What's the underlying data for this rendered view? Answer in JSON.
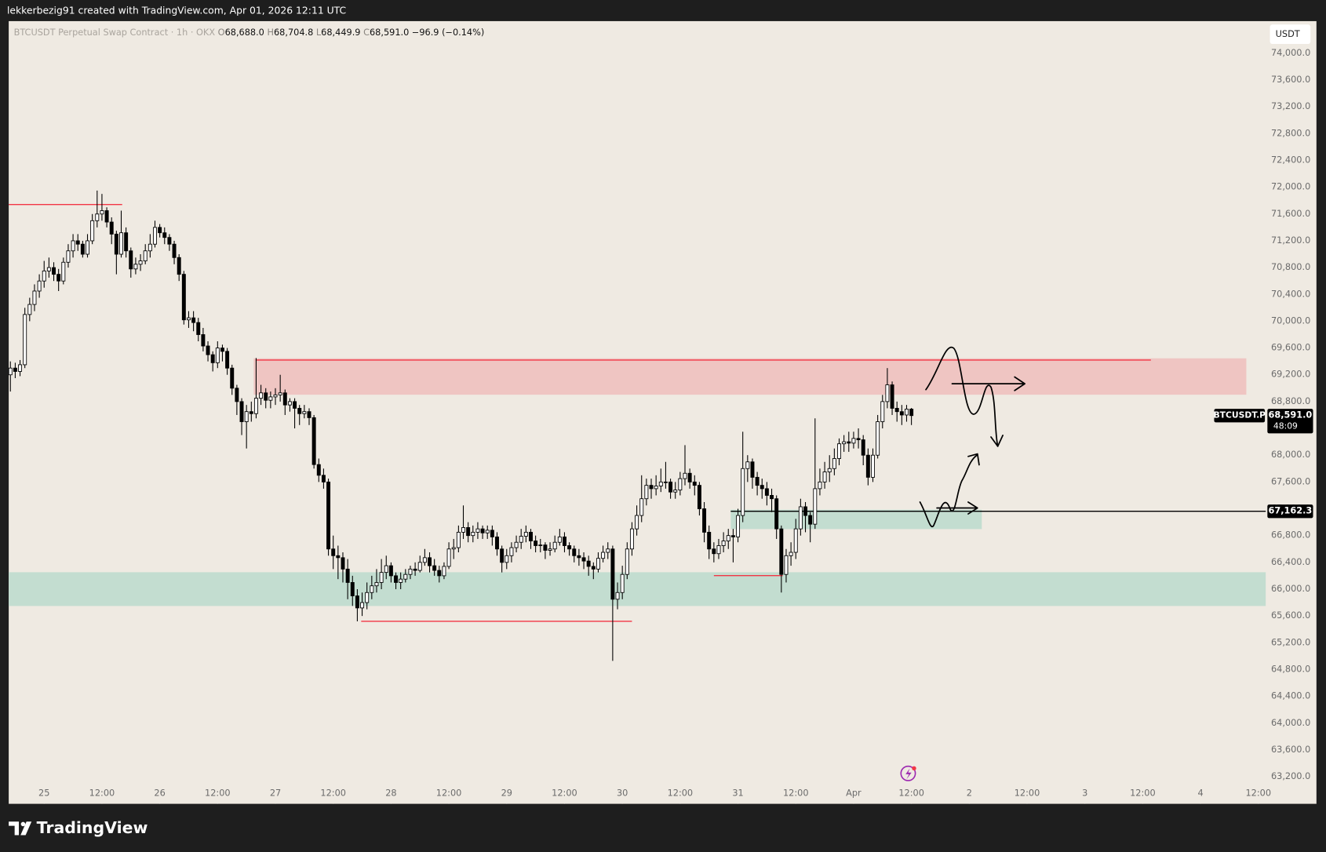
{
  "topbar": "lekkerbezig91 created with TradingView.com, Apr 01, 2026 12:11 UTC",
  "brand": "TradingView",
  "chart_data": {
    "type": "candlestick",
    "header": {
      "symbol": "BTCUSDT Perpetual Swap Contract · 1h · OKX",
      "items": [
        {
          "key": "O",
          "value": "68,688.0"
        },
        {
          "key": "H",
          "value": "68,704.8"
        },
        {
          "key": "L",
          "value": "68,449.9"
        },
        {
          "key": "C",
          "value": "68,591.0"
        }
      ],
      "change": "−96.9 (−0.14%)"
    },
    "currency": "USDT",
    "up_color": "#ffffff",
    "down_color": "#000000",
    "wick_color": "#000000",
    "ohlc": [
      [
        69200,
        69400,
        68950,
        69300
      ],
      [
        69300,
        69380,
        69150,
        69250
      ],
      [
        69250,
        69420,
        69180,
        69350
      ],
      [
        69350,
        70200,
        69300,
        70100
      ],
      [
        70100,
        70350,
        70000,
        70250
      ],
      [
        70250,
        70550,
        70150,
        70450
      ],
      [
        70450,
        70700,
        70350,
        70600
      ],
      [
        70600,
        70900,
        70500,
        70750
      ],
      [
        70750,
        70950,
        70650,
        70800
      ],
      [
        70800,
        70880,
        70600,
        70700
      ],
      [
        70700,
        70780,
        70450,
        70600
      ],
      [
        70600,
        70950,
        70550,
        70880
      ],
      [
        70880,
        71150,
        70800,
        71050
      ],
      [
        71050,
        71300,
        70950,
        71200
      ],
      [
        71200,
        71300,
        71050,
        71150
      ],
      [
        71150,
        71200,
        70950,
        71000
      ],
      [
        71000,
        71300,
        70950,
        71200
      ],
      [
        71200,
        71600,
        71150,
        71500
      ],
      [
        71500,
        71950,
        71400,
        71600
      ],
      [
        71600,
        71900,
        71500,
        71650
      ],
      [
        71650,
        71700,
        71400,
        71480
      ],
      [
        71480,
        71550,
        71150,
        71300
      ],
      [
        71300,
        71350,
        70700,
        71000
      ],
      [
        71000,
        71650,
        70950,
        71320
      ],
      [
        71320,
        71400,
        70950,
        71050
      ],
      [
        71050,
        71100,
        70650,
        70780
      ],
      [
        70780,
        70950,
        70700,
        70850
      ],
      [
        70850,
        71000,
        70750,
        70900
      ],
      [
        70900,
        71150,
        70850,
        71050
      ],
      [
        71050,
        71300,
        70950,
        71150
      ],
      [
        71150,
        71500,
        71100,
        71400
      ],
      [
        71400,
        71450,
        71250,
        71320
      ],
      [
        71320,
        71400,
        71150,
        71250
      ],
      [
        71250,
        71300,
        71050,
        71150
      ],
      [
        71150,
        71200,
        70850,
        70950
      ],
      [
        70950,
        71000,
        70600,
        70700
      ],
      [
        70700,
        70750,
        69950,
        70020
      ],
      [
        70020,
        70150,
        69900,
        70050
      ],
      [
        70050,
        70150,
        69850,
        69980
      ],
      [
        69980,
        70050,
        69700,
        69800
      ],
      [
        69800,
        69900,
        69550,
        69630
      ],
      [
        69630,
        69700,
        69400,
        69500
      ],
      [
        69500,
        69550,
        69250,
        69380
      ],
      [
        69380,
        69700,
        69300,
        69600
      ],
      [
        69600,
        69650,
        69400,
        69550
      ],
      [
        69550,
        69600,
        69200,
        69300
      ],
      [
        69300,
        69350,
        68900,
        69000
      ],
      [
        69000,
        69050,
        68600,
        68800
      ],
      [
        68800,
        68850,
        68300,
        68500
      ],
      [
        68500,
        68750,
        68100,
        68650
      ],
      [
        68650,
        68800,
        68500,
        68620
      ],
      [
        68620,
        69450,
        68550,
        68850
      ],
      [
        68850,
        69050,
        68750,
        68930
      ],
      [
        68930,
        69000,
        68700,
        68820
      ],
      [
        68820,
        68950,
        68700,
        68870
      ],
      [
        68870,
        69000,
        68750,
        68900
      ],
      [
        68900,
        69200,
        68800,
        68930
      ],
      [
        68930,
        68980,
        68600,
        68750
      ],
      [
        68750,
        68850,
        68650,
        68800
      ],
      [
        68800,
        68850,
        68400,
        68700
      ],
      [
        68700,
        68750,
        68450,
        68620
      ],
      [
        68620,
        68750,
        68550,
        68650
      ],
      [
        68650,
        68700,
        68450,
        68560
      ],
      [
        68560,
        68600,
        67800,
        67860
      ],
      [
        67860,
        67950,
        67600,
        67700
      ],
      [
        67700,
        67800,
        67500,
        67600
      ],
      [
        67600,
        67650,
        66500,
        66600
      ],
      [
        66600,
        66800,
        66300,
        66500
      ],
      [
        66500,
        66650,
        66150,
        66470
      ],
      [
        66470,
        66550,
        66100,
        66300
      ],
      [
        66300,
        66450,
        65850,
        66100
      ],
      [
        66100,
        66200,
        65750,
        65900
      ],
      [
        65900,
        66000,
        65520,
        65720
      ],
      [
        65720,
        65950,
        65600,
        65800
      ],
      [
        65800,
        66100,
        65700,
        65950
      ],
      [
        65950,
        66200,
        65850,
        66050
      ],
      [
        66050,
        66300,
        65950,
        66100
      ],
      [
        66100,
        66450,
        66000,
        66250
      ],
      [
        66250,
        66500,
        66150,
        66350
      ],
      [
        66350,
        66400,
        66100,
        66200
      ],
      [
        66200,
        66250,
        66000,
        66100
      ],
      [
        66100,
        66250,
        66000,
        66150
      ],
      [
        66150,
        66300,
        66100,
        66220
      ],
      [
        66220,
        66350,
        66150,
        66300
      ],
      [
        66300,
        66400,
        66200,
        66280
      ],
      [
        66280,
        66500,
        66250,
        66400
      ],
      [
        66400,
        66600,
        66350,
        66470
      ],
      [
        66470,
        66550,
        66250,
        66350
      ],
      [
        66350,
        66450,
        66200,
        66280
      ],
      [
        66280,
        66350,
        66100,
        66200
      ],
      [
        66200,
        66400,
        66150,
        66340
      ],
      [
        66340,
        66700,
        66300,
        66600
      ],
      [
        66600,
        66750,
        66450,
        66620
      ],
      [
        66620,
        66950,
        66550,
        66850
      ],
      [
        66850,
        67250,
        66750,
        66920
      ],
      [
        66920,
        67000,
        66700,
        66800
      ],
      [
        66800,
        66950,
        66700,
        66850
      ],
      [
        66850,
        67000,
        66750,
        66900
      ],
      [
        66900,
        66950,
        66750,
        66840
      ],
      [
        66840,
        66950,
        66750,
        66880
      ],
      [
        66880,
        66950,
        66650,
        66780
      ],
      [
        66780,
        66850,
        66500,
        66600
      ],
      [
        66600,
        66650,
        66250,
        66400
      ],
      [
        66400,
        66600,
        66300,
        66500
      ],
      [
        66500,
        66700,
        66400,
        66620
      ],
      [
        66620,
        66800,
        66550,
        66700
      ],
      [
        66700,
        66900,
        66600,
        66790
      ],
      [
        66790,
        66950,
        66700,
        66850
      ],
      [
        66850,
        66900,
        66600,
        66720
      ],
      [
        66720,
        66800,
        66550,
        66650
      ],
      [
        66650,
        66750,
        66550,
        66660
      ],
      [
        66660,
        66700,
        66450,
        66580
      ],
      [
        66580,
        66700,
        66500,
        66600
      ],
      [
        66600,
        66800,
        66550,
        66700
      ],
      [
        66700,
        66900,
        66650,
        66780
      ],
      [
        66780,
        66850,
        66550,
        66650
      ],
      [
        66650,
        66700,
        66500,
        66600
      ],
      [
        66600,
        66650,
        66400,
        66500
      ],
      [
        66500,
        66600,
        66350,
        66470
      ],
      [
        66470,
        66550,
        66300,
        66420
      ],
      [
        66420,
        66500,
        66200,
        66340
      ],
      [
        66340,
        66400,
        66150,
        66300
      ],
      [
        66300,
        66550,
        66250,
        66460
      ],
      [
        66460,
        66650,
        66400,
        66550
      ],
      [
        66550,
        66700,
        66450,
        66600
      ],
      [
        66600,
        66650,
        64930,
        65850
      ],
      [
        65850,
        66100,
        65700,
        65950
      ],
      [
        65950,
        66350,
        65850,
        66220
      ],
      [
        66220,
        66700,
        66150,
        66600
      ],
      [
        66600,
        67000,
        66500,
        66900
      ],
      [
        66900,
        67250,
        66800,
        67100
      ],
      [
        67100,
        67700,
        67000,
        67350
      ],
      [
        67350,
        67650,
        67250,
        67550
      ],
      [
        67550,
        67650,
        67350,
        67500
      ],
      [
        67500,
        67700,
        67400,
        67540
      ],
      [
        67540,
        67800,
        67450,
        67600
      ],
      [
        67600,
        67900,
        67500,
        67600
      ],
      [
        67600,
        67650,
        67350,
        67450
      ],
      [
        67450,
        67600,
        67350,
        67480
      ],
      [
        67480,
        67750,
        67400,
        67650
      ],
      [
        67650,
        68150,
        67550,
        67730
      ],
      [
        67730,
        67800,
        67500,
        67600
      ],
      [
        67600,
        67700,
        67400,
        67550
      ],
      [
        67550,
        67600,
        67100,
        67200
      ],
      [
        67200,
        67300,
        66700,
        66850
      ],
      [
        66850,
        66950,
        66450,
        66600
      ],
      [
        66600,
        66700,
        66400,
        66530
      ],
      [
        66530,
        66750,
        66450,
        66650
      ],
      [
        66650,
        66850,
        66550,
        66720
      ],
      [
        66720,
        66900,
        66600,
        66800
      ],
      [
        66800,
        66900,
        66400,
        66780
      ],
      [
        66780,
        67200,
        66700,
        67100
      ],
      [
        67100,
        68350,
        67000,
        67800
      ],
      [
        67800,
        68000,
        67600,
        67900
      ],
      [
        67900,
        67950,
        67500,
        67670
      ],
      [
        67670,
        67750,
        67400,
        67550
      ],
      [
        67550,
        67650,
        67350,
        67500
      ],
      [
        67500,
        67600,
        67250,
        67400
      ],
      [
        67400,
        67500,
        67150,
        67350
      ],
      [
        67350,
        67400,
        66750,
        66900
      ],
      [
        66900,
        66950,
        65950,
        66220
      ],
      [
        66220,
        66600,
        66100,
        66500
      ],
      [
        66500,
        66700,
        66350,
        66550
      ],
      [
        66550,
        67050,
        66450,
        66900
      ],
      [
        66900,
        67350,
        66800,
        67230
      ],
      [
        67230,
        67300,
        66850,
        67100
      ],
      [
        67100,
        67150,
        66700,
        66970
      ],
      [
        66970,
        68550,
        66900,
        67500
      ],
      [
        67500,
        67800,
        67400,
        67600
      ],
      [
        67600,
        67900,
        67500,
        67750
      ],
      [
        67750,
        68000,
        67600,
        67800
      ],
      [
        67800,
        68100,
        67700,
        67950
      ],
      [
        67950,
        68250,
        67850,
        68170
      ],
      [
        68170,
        68300,
        68050,
        68200
      ],
      [
        68200,
        68350,
        68050,
        68180
      ],
      [
        68180,
        68350,
        68100,
        68250
      ],
      [
        68250,
        68400,
        68100,
        68230
      ],
      [
        68230,
        68300,
        67850,
        68000
      ],
      [
        68000,
        68100,
        67550,
        67670
      ],
      [
        67670,
        68100,
        67600,
        68000
      ],
      [
        68000,
        68600,
        67950,
        68500
      ],
      [
        68500,
        68900,
        68400,
        68800
      ],
      [
        68800,
        69300,
        68700,
        69050
      ],
      [
        69050,
        69100,
        68600,
        68700
      ],
      [
        68700,
        68800,
        68500,
        68650
      ],
      [
        68650,
        68750,
        68450,
        68600
      ],
      [
        68600,
        68750,
        68500,
        68688
      ],
      [
        68688.0,
        68704.8,
        68449.9,
        68591.0
      ]
    ],
    "xlim": [
      -0.35,
      260.53
    ],
    "xticks": [
      {
        "value": 7,
        "label": "25"
      },
      {
        "value": 19,
        "label": "12:00"
      },
      {
        "value": 31,
        "label": "26"
      },
      {
        "value": 43,
        "label": "12:00"
      },
      {
        "value": 55,
        "label": "27"
      },
      {
        "value": 67,
        "label": "12:00"
      },
      {
        "value": 79,
        "label": "28"
      },
      {
        "value": 91,
        "label": "12:00"
      },
      {
        "value": 103,
        "label": "29"
      },
      {
        "value": 115,
        "label": "12:00"
      },
      {
        "value": 127,
        "label": "30"
      },
      {
        "value": 139,
        "label": "12:00"
      },
      {
        "value": 151,
        "label": "31"
      },
      {
        "value": 163,
        "label": "12:00"
      },
      {
        "value": 175,
        "label": "Apr"
      },
      {
        "value": 187,
        "label": "12:00"
      },
      {
        "value": 199,
        "label": "2"
      },
      {
        "value": 211,
        "label": "12:00"
      },
      {
        "value": 223,
        "label": "3"
      },
      {
        "value": 235,
        "label": "12:00"
      },
      {
        "value": 247,
        "label": "4"
      },
      {
        "value": 259,
        "label": "12:00"
      }
    ],
    "ylim": [
      62796,
      74479
    ],
    "yticks": [
      {
        "value": 63200,
        "label": "63,200.0"
      },
      {
        "value": 63600,
        "label": "63,600.0"
      },
      {
        "value": 64000,
        "label": "64,000.0"
      },
      {
        "value": 64400,
        "label": "64,400.0"
      },
      {
        "value": 64800,
        "label": "64,800.0"
      },
      {
        "value": 65200,
        "label": "65,200.0"
      },
      {
        "value": 65600,
        "label": "65,600.0"
      },
      {
        "value": 66000,
        "label": "66,000.0"
      },
      {
        "value": 66400,
        "label": "66,400.0"
      },
      {
        "value": 66800,
        "label": "66,800.0"
      },
      {
        "value": 67200,
        "label": "67,200.0"
      },
      {
        "value": 67600,
        "label": "67,600.0"
      },
      {
        "value": 68000,
        "label": "68,000.0"
      },
      {
        "value": 68400,
        "label": "68,400.0"
      },
      {
        "value": 68800,
        "label": "68,800.0"
      },
      {
        "value": 69200,
        "label": "69,200.0"
      },
      {
        "value": 69600,
        "label": "69,600.0"
      },
      {
        "value": 70000,
        "label": "70,000.0"
      },
      {
        "value": 70400,
        "label": "70,400.0"
      },
      {
        "value": 70800,
        "label": "70,800.0"
      },
      {
        "value": 71200,
        "label": "71,200.0"
      },
      {
        "value": 71600,
        "label": "71,600.0"
      },
      {
        "value": 72000,
        "label": "72,000.0"
      },
      {
        "value": 72400,
        "label": "72,400.0"
      },
      {
        "value": 72800,
        "label": "72,800.0"
      },
      {
        "value": 73200,
        "label": "73,200.0"
      },
      {
        "value": 73600,
        "label": "73,600.0"
      },
      {
        "value": 74000,
        "label": "74,000.0"
      }
    ],
    "zones": [
      {
        "color": "#efc5c2",
        "y": [
          69446,
          68903
        ],
        "x": [
          50.5,
          256.5
        ]
      },
      {
        "color": "#c3ddd0",
        "y": [
          66253,
          65749
        ],
        "x": [
          -0.35,
          260.53
        ]
      },
      {
        "color": "#c3ddd0",
        "y": [
          67187,
          66897
        ],
        "x": [
          149.5,
          201.6
        ]
      }
    ],
    "levels": [
      {
        "color": "#f23645",
        "value": 71742,
        "x": [
          -0.35,
          23.2
        ]
      },
      {
        "color": "#f23645",
        "value": 69420,
        "x": [
          50.9,
          236.7
        ]
      },
      {
        "color": "#f23645",
        "value": 65521,
        "x": [
          72.8,
          129
        ]
      },
      {
        "color": "#f23645",
        "value": 66203,
        "x": [
          146,
          160.3
        ]
      },
      {
        "color": "#000000",
        "value": 67162.3,
        "x": [
          149.5,
          260.53
        ],
        "label": "67,162.3"
      }
    ],
    "last_price": {
      "symbol": "BTCUSDT.P",
      "price": "68,591.0",
      "countdown": "48:09"
    }
  }
}
